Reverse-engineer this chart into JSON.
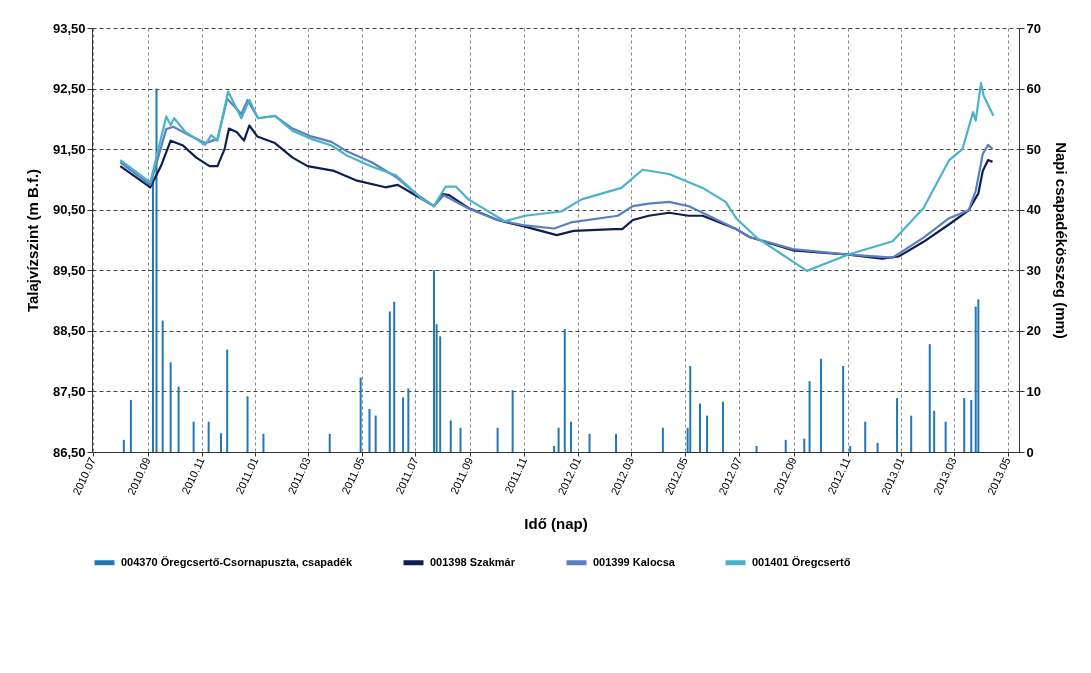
{
  "chart_data": {
    "type": "line",
    "xlabel": "Idő (nap)",
    "ylabel": "Talajvízszint (m B.f.)",
    "y2label": "Napi csapadékösszeg (mm)",
    "xlim": [
      "2010-06-30",
      "2013-05-14"
    ],
    "xticks": [
      {
        "value": "2010-07-01",
        "label": "2010.07"
      },
      {
        "value": "2010-09-01",
        "label": "2010.09"
      },
      {
        "value": "2010-11-01",
        "label": "2010.11"
      },
      {
        "value": "2011-01-01",
        "label": "2011.01"
      },
      {
        "value": "2011-03-01",
        "label": "2011.03"
      },
      {
        "value": "2011-05-01",
        "label": "2011.05"
      },
      {
        "value": "2011-07-01",
        "label": "2011.07"
      },
      {
        "value": "2011-09-01",
        "label": "2011.09"
      },
      {
        "value": "2011-11-01",
        "label": "2011.11"
      },
      {
        "value": "2012-01-01",
        "label": "2012.01"
      },
      {
        "value": "2012-03-01",
        "label": "2012.03"
      },
      {
        "value": "2012-05-01",
        "label": "2012.05"
      },
      {
        "value": "2012-07-01",
        "label": "2012.07"
      },
      {
        "value": "2012-09-01",
        "label": "2012.09"
      },
      {
        "value": "2012-11-01",
        "label": "2012.11"
      },
      {
        "value": "2013-01-01",
        "label": "2013.01"
      },
      {
        "value": "2013-03-01",
        "label": "2013.03"
      },
      {
        "value": "2013-05-01",
        "label": "2013.05"
      }
    ],
    "ylim": [
      86.5,
      93.5
    ],
    "yticks": [
      {
        "value": 86.5,
        "label": "86,50"
      },
      {
        "value": 87.5,
        "label": "87,50"
      },
      {
        "value": 88.5,
        "label": "88,50"
      },
      {
        "value": 89.5,
        "label": "89,50"
      },
      {
        "value": 90.5,
        "label": "90,50"
      },
      {
        "value": 91.5,
        "label": "91,50"
      },
      {
        "value": 92.5,
        "label": "92,50"
      },
      {
        "value": 93.5,
        "label": "93,50"
      }
    ],
    "y2lim": [
      0,
      70
    ],
    "y2ticks": [
      0,
      10,
      20,
      30,
      40,
      50,
      60,
      70
    ],
    "grid": true,
    "legend": "bottom",
    "series": [
      {
        "name": "004370 Öregcsertő-Csornapuszta, csapadék",
        "type": "bar",
        "axis": "y2",
        "color": "#2277b5",
        "x": [
          "2010-08-05",
          "2010-08-13",
          "2010-09-07",
          "2010-09-11",
          "2010-09-18",
          "2010-09-27",
          "2010-10-06",
          "2010-10-23",
          "2010-11-09",
          "2010-11-23",
          "2010-11-30",
          "2010-12-23",
          "2011-01-10",
          "2011-03-26",
          "2011-04-30",
          "2011-05-10",
          "2011-05-17",
          "2011-06-02",
          "2011-06-07",
          "2011-06-17",
          "2011-06-23",
          "2011-07-22",
          "2011-07-25",
          "2011-07-29",
          "2011-08-10",
          "2011-08-21",
          "2011-10-02",
          "2011-10-19",
          "2011-12-05",
          "2011-12-10",
          "2011-12-17",
          "2011-12-24",
          "2012-01-14",
          "2012-02-13",
          "2012-04-06",
          "2012-05-04",
          "2012-05-07",
          "2012-05-18",
          "2012-05-26",
          "2012-06-13",
          "2012-07-21",
          "2012-08-23",
          "2012-09-13",
          "2012-09-19",
          "2012-10-02",
          "2012-10-27",
          "2012-11-04",
          "2012-11-21",
          "2012-12-05",
          "2012-12-27",
          "2013-01-12",
          "2013-02-02",
          "2013-02-07",
          "2013-02-20",
          "2013-03-13",
          "2013-03-21",
          "2013-03-26",
          "2013-03-29"
        ],
        "values": [
          2,
          8.6,
          45,
          60,
          21.7,
          14.8,
          10.8,
          5,
          5,
          3.1,
          16.9,
          9.2,
          3,
          3,
          12.3,
          7.1,
          6,
          23.2,
          24.8,
          9,
          10.5,
          30,
          21.1,
          19.1,
          5.2,
          4,
          4,
          10.2,
          1,
          4,
          20.3,
          5,
          3,
          3,
          4,
          4,
          14.2,
          8,
          6,
          8.3,
          1,
          2,
          2.2,
          11.7,
          15.4,
          14.2,
          1,
          5,
          1.5,
          8.9,
          6,
          17.8,
          6.8,
          5,
          8.9,
          8.6,
          24,
          25.2
        ]
      },
      {
        "name": "001398 Szakmár",
        "color": "#0d1f4f",
        "x": [
          "2010-08-01",
          "2010-09-04",
          "2010-09-16",
          "2010-09-27",
          "2010-10-11",
          "2010-10-26",
          "2010-11-10",
          "2010-11-19",
          "2010-11-27",
          "2010-12-02",
          "2010-12-11",
          "2010-12-19",
          "2010-12-25",
          "2011-01-03",
          "2011-01-23",
          "2011-02-12",
          "2011-03-01",
          "2011-03-31",
          "2011-04-26",
          "2011-05-28",
          "2011-06-11",
          "2011-07-01",
          "2011-07-22",
          "2011-08-01",
          "2011-08-08",
          "2011-08-30",
          "2011-10-02",
          "2011-11-02",
          "2011-12-08",
          "2011-12-27",
          "2012-02-11",
          "2012-02-20",
          "2012-03-03",
          "2012-03-21",
          "2012-04-13",
          "2012-05-05",
          "2012-05-21",
          "2012-06-28",
          "2012-07-13",
          "2012-08-31",
          "2012-11-02",
          "2012-12-10",
          "2012-12-29",
          "2013-01-26",
          "2013-02-24",
          "2013-03-18",
          "2013-03-29",
          "2013-04-03",
          "2013-04-09",
          "2013-04-14"
        ],
        "values": [
          91.22,
          90.87,
          91.22,
          91.64,
          91.56,
          91.36,
          91.22,
          91.22,
          91.5,
          91.84,
          91.78,
          91.64,
          91.89,
          91.71,
          91.6,
          91.36,
          91.22,
          91.14,
          90.98,
          90.87,
          90.91,
          90.74,
          90.56,
          90.76,
          90.74,
          90.53,
          90.33,
          90.22,
          90.08,
          90.15,
          90.18,
          90.18,
          90.33,
          90.4,
          90.45,
          90.4,
          90.4,
          90.18,
          90.05,
          89.83,
          89.76,
          89.69,
          89.73,
          89.97,
          90.26,
          90.49,
          90.77,
          91.14,
          91.32,
          91.29
        ]
      },
      {
        "name": "001399 Kalocsa",
        "color": "#5b7fc0",
        "x": [
          "2010-08-01",
          "2010-09-04",
          "2010-09-22",
          "2010-09-30",
          "2010-10-14",
          "2010-11-05",
          "2010-11-19",
          "2010-11-30",
          "2010-12-16",
          "2010-12-23",
          "2011-01-04",
          "2011-01-23",
          "2011-02-12",
          "2011-03-05",
          "2011-03-28",
          "2011-04-15",
          "2011-05-13",
          "2011-06-09",
          "2011-07-01",
          "2011-07-22",
          "2011-08-02",
          "2011-08-30",
          "2011-10-02",
          "2011-11-02",
          "2011-12-05",
          "2011-12-24",
          "2012-02-15",
          "2012-03-03",
          "2012-03-21",
          "2012-04-13",
          "2012-05-05",
          "2012-06-28",
          "2012-07-13",
          "2012-08-31",
          "2012-11-02",
          "2012-12-22",
          "2013-01-26",
          "2013-02-24",
          "2013-03-18",
          "2013-03-26",
          "2013-04-03",
          "2013-04-09",
          "2013-04-14"
        ],
        "values": [
          91.28,
          90.91,
          91.83,
          91.87,
          91.76,
          91.6,
          91.67,
          92.33,
          92.08,
          92.31,
          92.01,
          92.05,
          91.84,
          91.71,
          91.62,
          91.46,
          91.28,
          91.04,
          90.77,
          90.56,
          90.74,
          90.52,
          90.33,
          90.24,
          90.19,
          90.29,
          90.4,
          90.56,
          90.6,
          90.63,
          90.56,
          90.18,
          90.05,
          89.85,
          89.76,
          89.71,
          90.04,
          90.36,
          90.49,
          90.81,
          91.42,
          91.57,
          91.5
        ]
      },
      {
        "name": "001401 Öregcsertő",
        "color": "#4ab3c8",
        "x": [
          "2010-08-01",
          "2010-09-04",
          "2010-09-22",
          "2010-09-27",
          "2010-10-01",
          "2010-10-14",
          "2010-11-05",
          "2010-11-12",
          "2010-11-19",
          "2010-12-01",
          "2010-12-16",
          "2010-12-25",
          "2011-01-04",
          "2011-01-23",
          "2011-02-12",
          "2011-03-05",
          "2011-03-28",
          "2011-04-15",
          "2011-05-13",
          "2011-06-09",
          "2011-07-09",
          "2011-07-22",
          "2011-08-04",
          "2011-08-16",
          "2011-08-30",
          "2011-10-10",
          "2011-11-02",
          "2011-12-13",
          "2012-01-05",
          "2012-02-19",
          "2012-03-14",
          "2012-04-13",
          "2012-05-21",
          "2012-06-16",
          "2012-06-28",
          "2012-07-21",
          "2012-09-16",
          "2012-11-02",
          "2012-12-22",
          "2013-01-26",
          "2013-02-24",
          "2013-03-11",
          "2013-03-23",
          "2013-03-26",
          "2013-04-01",
          "2013-04-04",
          "2013-04-15"
        ],
        "values": [
          91.32,
          90.95,
          92.04,
          91.9,
          92.01,
          91.78,
          91.57,
          91.73,
          91.64,
          92.45,
          92.01,
          92.31,
          92.01,
          92.05,
          91.8,
          91.67,
          91.56,
          91.39,
          91.21,
          91.07,
          90.67,
          90.56,
          90.88,
          90.88,
          90.67,
          90.31,
          90.4,
          90.47,
          90.67,
          90.86,
          91.16,
          91.09,
          90.86,
          90.63,
          90.36,
          90.04,
          89.49,
          89.76,
          89.98,
          90.53,
          91.32,
          91.5,
          92.11,
          91.97,
          92.59,
          92.38,
          92.05
        ]
      }
    ]
  }
}
